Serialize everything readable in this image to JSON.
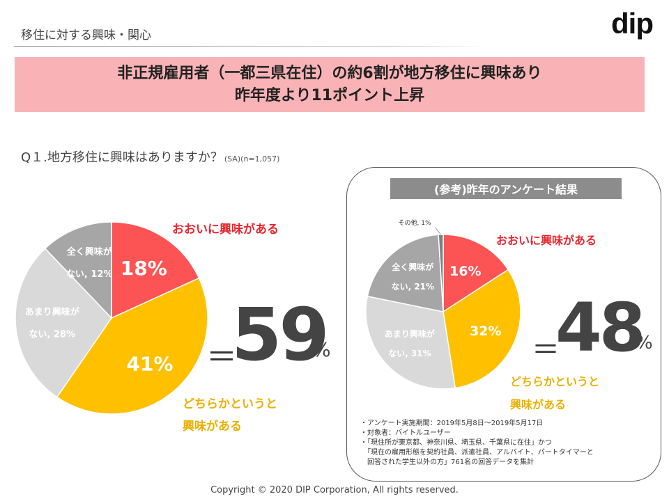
{
  "header": {
    "section_title": "移住に対する興味・関心",
    "logo_text": "dip"
  },
  "headline": {
    "line1": "非正規雇用者（一都三県在住）の約6割が地方移住に興味あり",
    "line2": "昨年度より11ポイント上昇"
  },
  "question": {
    "text": "Q１.地方移住に興味はありますか？",
    "note": "(SA)(n=1,057)"
  },
  "main_summary": {
    "equals": "＝",
    "value": "59",
    "unit": "%"
  },
  "reference": {
    "header": "(参考)昨年のアンケート結果",
    "summary": {
      "equals": "＝",
      "value": "48",
      "unit": "%"
    },
    "notes": [
      "・アンケート実施期間：2019年5月8日～2019年5月17日",
      "・対象者：バイトルユーザー",
      "・「現住所が東京都、神奈川県、埼玉県、千葉県に在住」かつ",
      "　「現在の雇用形態を契約社員、派遣社員、アルバイト、パートタイマーと",
      "　回答された学生以外の方」761名の回答データを集計"
    ]
  },
  "footer": {
    "copyright": "Copyright  ©  2020  DIP Corporation, All rights reserved."
  },
  "colors": {
    "red": "#fc5354",
    "yellow": "#ffc000",
    "light_gray": "#d9d9d9",
    "gray": "#a6a6a6",
    "dark_gray": "#7f7f7f",
    "headline_bg": "#f9b3b6"
  },
  "chart_data": [
    {
      "type": "pie",
      "series": [
        {
          "name": "おおいに興味がある",
          "value": 18,
          "label": "18%",
          "color": "#fc5354"
        },
        {
          "name": "どちらかというと興味がある",
          "value": 41,
          "label": "41%",
          "color": "#ffc000"
        },
        {
          "name": "あまり興味がない",
          "value": 28,
          "label": "あまり興味が|ない, 28%",
          "color": "#d9d9d9"
        },
        {
          "name": "全く興味がない",
          "value": 12,
          "label": "全く興味が|ない, 12%",
          "color": "#a6a6a6"
        }
      ],
      "annotations": [
        "おおいに興味がある",
        "どちらかというと",
        "興味がある"
      ]
    },
    {
      "type": "pie",
      "series": [
        {
          "name": "おおいに興味がある",
          "value": 16,
          "label": "16%",
          "color": "#fc5354"
        },
        {
          "name": "どちらかというと興味がある",
          "value": 32,
          "label": "32%",
          "color": "#ffc000"
        },
        {
          "name": "あまり興味がない",
          "value": 31,
          "label": "あまり興味が|ない, 31%",
          "color": "#d9d9d9"
        },
        {
          "name": "全く興味がない",
          "value": 21,
          "label": "全く興味が|ない, 21%",
          "color": "#a6a6a6"
        },
        {
          "name": "その他",
          "value": 1,
          "label": "その他, 1%",
          "color": "#7f7f7f"
        }
      ],
      "annotations": [
        "おおいに興味がある",
        "どちらかというと",
        "興味がある"
      ]
    }
  ]
}
